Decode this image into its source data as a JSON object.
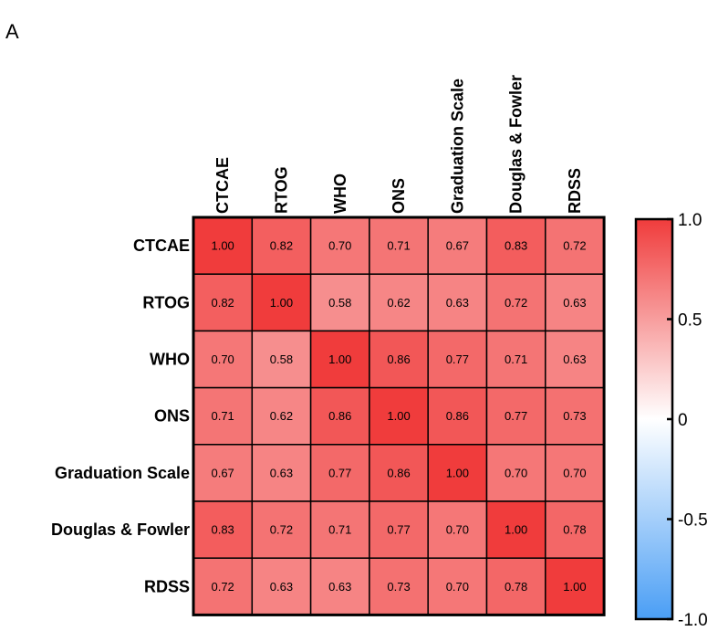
{
  "panel_label": "A",
  "chart_data": {
    "type": "heatmap",
    "title": "",
    "labels": [
      "CTCAE",
      "RTOG",
      "WHO",
      "ONS",
      "Graduation Scale",
      "Douglas & Fowler",
      "RDSS"
    ],
    "matrix": [
      [
        1.0,
        0.82,
        0.7,
        0.71,
        0.67,
        0.83,
        0.72
      ],
      [
        0.82,
        1.0,
        0.58,
        0.62,
        0.63,
        0.72,
        0.63
      ],
      [
        0.7,
        0.58,
        1.0,
        0.86,
        0.77,
        0.71,
        0.63
      ],
      [
        0.71,
        0.62,
        0.86,
        1.0,
        0.86,
        0.77,
        0.73
      ],
      [
        0.67,
        0.63,
        0.77,
        0.86,
        1.0,
        0.7,
        0.7
      ],
      [
        0.83,
        0.72,
        0.71,
        0.77,
        0.7,
        1.0,
        0.78
      ],
      [
        0.72,
        0.63,
        0.63,
        0.73,
        0.7,
        0.78,
        1.0
      ]
    ],
    "value_range": [
      -1.0,
      1.0
    ],
    "colorbar_ticks": [
      {
        "value": 1.0,
        "label": "1.0"
      },
      {
        "value": 0.5,
        "label": "0.5"
      },
      {
        "value": 0.0,
        "label": "0"
      },
      {
        "value": -0.5,
        "label": "-0.5"
      },
      {
        "value": -1.0,
        "label": "-1.0"
      }
    ],
    "colors": {
      "high": "#f03c3c",
      "mid": "#ffffff",
      "low": "#4a9ef5"
    },
    "legend": "right"
  }
}
